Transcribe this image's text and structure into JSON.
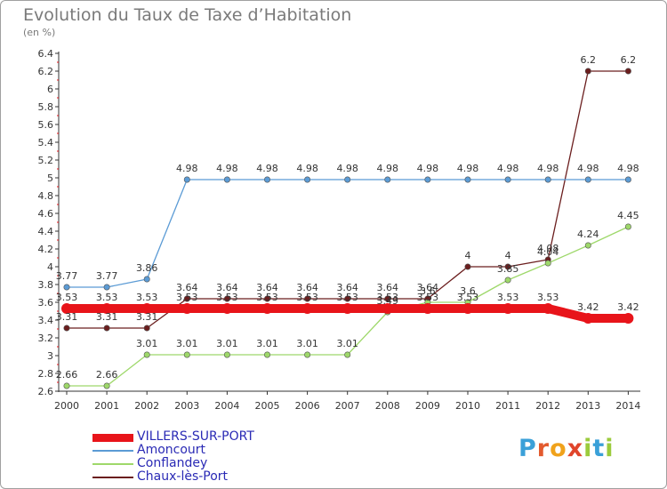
{
  "title": "Evolution du Taux de Taxe d’Habitation",
  "unit": "(en %)",
  "brand": "Proxiti",
  "chart_data": {
    "type": "line",
    "x": [
      "2000",
      "2001",
      "2002",
      "2003",
      "2004",
      "2005",
      "2006",
      "2007",
      "2008",
      "2009",
      "2010",
      "2011",
      "2012",
      "2013",
      "2014"
    ],
    "ylim": [
      2.6,
      6.4
    ],
    "yticks": [
      "2.6",
      "2.8",
      "3",
      "3.2",
      "3.4",
      "3.6",
      "3.8",
      "4",
      "4.2",
      "4.4",
      "4.6",
      "4.8",
      "5",
      "5.2",
      "5.4",
      "5.6",
      "5.8",
      "6",
      "6.2",
      "6.4"
    ],
    "grid": false,
    "legend_position": "bottom-left",
    "series": [
      {
        "name": "VILLERS-SUR-PORT",
        "color": "#e8141a",
        "values": [
          3.53,
          3.53,
          3.53,
          3.53,
          3.53,
          3.53,
          3.53,
          3.53,
          3.53,
          3.53,
          3.53,
          3.53,
          3.53,
          3.42,
          3.42
        ],
        "labels": [
          "3.53",
          "3.53",
          "3.53",
          "3.53",
          "3.53",
          "3.53",
          "3.53",
          "3.53",
          "3.53",
          "3.53",
          "3.53",
          "3.53",
          "3.53",
          "3.42",
          "3.42"
        ]
      },
      {
        "name": "Amoncourt",
        "color": "#5b9bd5",
        "values": [
          3.77,
          3.77,
          3.86,
          4.98,
          4.98,
          4.98,
          4.98,
          4.98,
          4.98,
          4.98,
          4.98,
          4.98,
          4.98,
          4.98,
          4.98
        ],
        "labels": [
          "3.77",
          "3.77",
          "3.86",
          "4.98",
          "4.98",
          "4.98",
          "4.98",
          "4.98",
          "4.98",
          "4.98",
          "4.98",
          "4.98",
          "4.98",
          "4.98",
          "4.98"
        ]
      },
      {
        "name": "Conflandey",
        "color": "#9ed86a",
        "values": [
          2.66,
          2.66,
          3.01,
          3.01,
          3.01,
          3.01,
          3.01,
          3.01,
          3.49,
          3.6,
          3.6,
          3.85,
          4.04,
          4.24,
          4.45
        ],
        "labels": [
          "2.66",
          "2.66",
          "3.01",
          "3.01",
          "3.01",
          "3.01",
          "3.01",
          "3.01",
          "3.49",
          "3.6",
          "3.6",
          "3.85",
          "4.04",
          "4.24",
          "4.45"
        ]
      },
      {
        "name": "Chaux-lès-Port",
        "color": "#6b1e1e",
        "values": [
          3.31,
          3.31,
          3.31,
          3.64,
          3.64,
          3.64,
          3.64,
          3.64,
          3.64,
          3.64,
          4,
          4,
          4.08,
          6.2,
          6.2
        ],
        "labels": [
          "3.31",
          "3.31",
          "3.31",
          "3.64",
          "3.64",
          "3.64",
          "3.64",
          "3.64",
          "3.64",
          "3.64",
          "4",
          "4",
          "4.08",
          "6.2",
          "6.2"
        ]
      }
    ]
  }
}
